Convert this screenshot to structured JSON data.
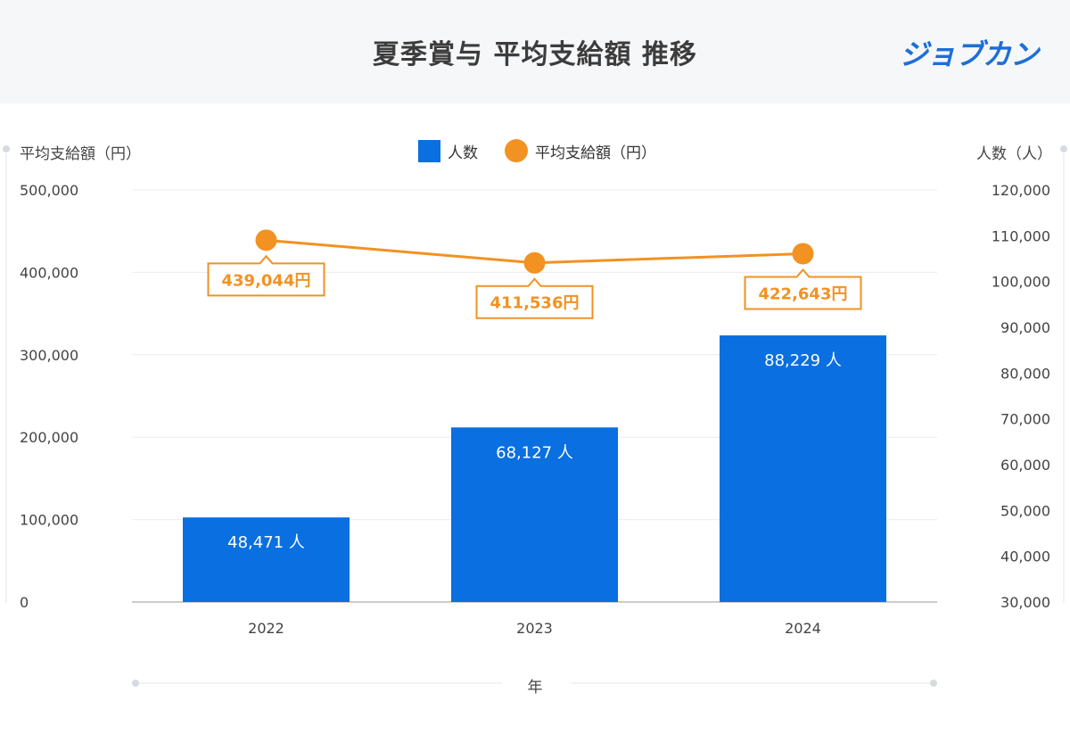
{
  "header": {
    "title": "夏季賞与 平均支給額 推移",
    "brand": "ジョブカン"
  },
  "legend": {
    "bar_label": "人数",
    "line_label": "平均支給額（円）"
  },
  "chart_data": {
    "type": "bar",
    "title": "夏季賞与 平均支給額 推移",
    "xlabel": "年",
    "categories": [
      "2022",
      "2023",
      "2024"
    ],
    "series": [
      {
        "name": "人数",
        "type": "bar",
        "axis": "right",
        "values": [
          48471,
          68127,
          88229
        ],
        "labels": [
          "48,471 人",
          "68,127 人",
          "88,229 人"
        ],
        "color": "#0a6fe0"
      },
      {
        "name": "平均支給額（円）",
        "type": "line",
        "axis": "left",
        "values": [
          439044,
          411536,
          422643
        ],
        "labels": [
          "439,044円",
          "411,536円",
          "422,643円"
        ],
        "color": "#f29222"
      }
    ],
    "y_left": {
      "label": "平均支給額（円）",
      "range": [
        0,
        500000
      ],
      "ticks": [
        0,
        100000,
        200000,
        300000,
        400000,
        500000
      ],
      "tick_labels": [
        "0",
        "100,000",
        "200,000",
        "300,000",
        "400,000",
        "500,000"
      ]
    },
    "y_right": {
      "label": "人数（人）",
      "range": [
        30000,
        120000
      ],
      "ticks": [
        30000,
        40000,
        50000,
        60000,
        70000,
        80000,
        90000,
        100000,
        110000,
        120000
      ],
      "tick_labels": [
        "30,000",
        "40,000",
        "50,000",
        "60,000",
        "70,000",
        "80,000",
        "90,000",
        "100,000",
        "110,000",
        "120,000"
      ]
    },
    "grid": true,
    "legend_position": "top-center"
  }
}
